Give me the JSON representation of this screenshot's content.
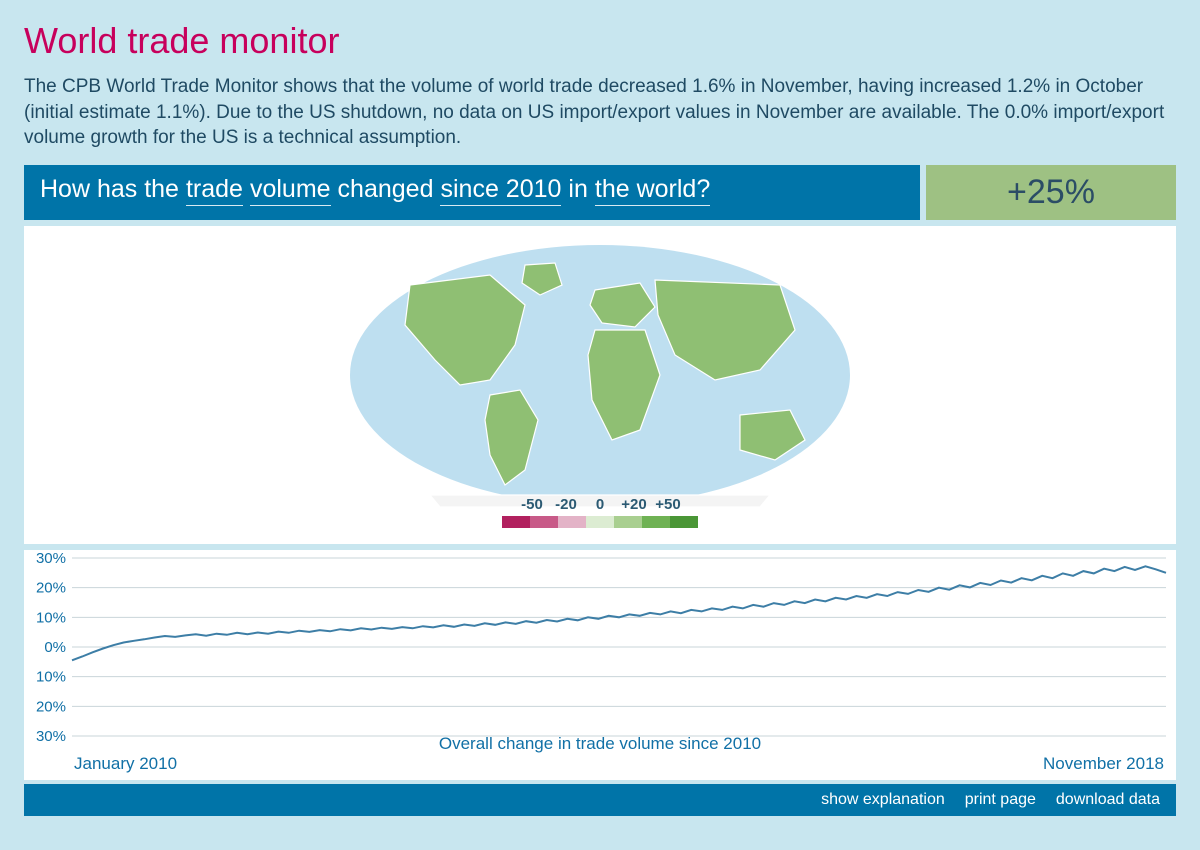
{
  "colors": {
    "page_bg": "#c8e6ef",
    "title": "#c7005c",
    "body_text": "#1f4a63",
    "question_bg": "#0074a8",
    "question_text": "#ffffff",
    "answer_bg": "#9ec183",
    "answer_text": "#2b4d66",
    "chart_line": "#3d7ea6",
    "chart_grid": "#c9d4da",
    "chart_label": "#1170a6",
    "map_bg": "#ffffff",
    "ocean": "#bedff0",
    "land_nodata": "#f4f4f4",
    "land_green": "#8fbf73"
  },
  "title": "World trade monitor",
  "intro": "The CPB World Trade Monitor shows that the volume of world trade decreased 1.6% in November, having increased 1.2% in October (initial estimate 1.1%). Due to the US shutdown, no data on US import/export values in November are available. The 0.0% import/export volume growth for the US is a technical assumption.",
  "question": {
    "parts": [
      {
        "type": "text",
        "value": "How has the"
      },
      {
        "type": "select",
        "value": "trade"
      },
      {
        "type": "select",
        "value": "volume"
      },
      {
        "type": "text",
        "value": "changed"
      },
      {
        "type": "select",
        "value": "since 2010"
      },
      {
        "type": "text",
        "value": "in"
      },
      {
        "type": "select",
        "value": "the world?"
      }
    ],
    "answer": "+25%"
  },
  "map_legend": {
    "ticks": [
      "-50",
      "-20",
      "0",
      "+20",
      "+50"
    ],
    "colors": [
      "#b2215f",
      "#c85a88",
      "#e3b3c7",
      "#dcecd2",
      "#a9cf90",
      "#6fb254",
      "#4a9636"
    ],
    "text_color": "#2b5a73"
  },
  "chart": {
    "type": "line",
    "caption": "Overall change in trade volume since 2010",
    "x_start_label": "January 2010",
    "x_end_label": "November 2018",
    "x_range": [
      0,
      106
    ],
    "ylim": [
      -30,
      30
    ],
    "y_ticks": [
      30,
      20,
      10,
      0,
      -10,
      -20,
      -30
    ],
    "y_tick_labels": [
      "30%",
      "20%",
      "10%",
      "0%",
      "10%",
      "20%",
      "30%"
    ],
    "grid_color": "#c9d4da",
    "line_color": "#3d7ea6",
    "line_width": 2,
    "label_color": "#1170a6",
    "label_fontsize": 17,
    "background_color": "#ffffff",
    "values": [
      -4.5,
      -3.2,
      -1.8,
      -0.5,
      0.6,
      1.5,
      2.1,
      2.6,
      3.2,
      3.7,
      3.4,
      3.9,
      4.3,
      3.8,
      4.5,
      4.1,
      4.8,
      4.3,
      4.9,
      4.5,
      5.2,
      4.8,
      5.5,
      5.1,
      5.7,
      5.3,
      6.0,
      5.6,
      6.3,
      5.9,
      6.5,
      6.1,
      6.7,
      6.3,
      7.0,
      6.6,
      7.3,
      6.8,
      7.6,
      7.1,
      8.0,
      7.5,
      8.3,
      7.8,
      8.7,
      8.2,
      9.1,
      8.6,
      9.5,
      9.0,
      10.0,
      9.5,
      10.5,
      10.0,
      11.0,
      10.5,
      11.5,
      11.0,
      12.0,
      11.4,
      12.5,
      12.0,
      13.0,
      12.5,
      13.6,
      13.0,
      14.2,
      13.6,
      14.8,
      14.2,
      15.4,
      14.8,
      16.0,
      15.4,
      16.6,
      16.0,
      17.2,
      16.6,
      17.8,
      17.2,
      18.5,
      17.9,
      19.2,
      18.6,
      20.0,
      19.3,
      20.8,
      20.1,
      21.6,
      20.9,
      22.4,
      21.7,
      23.2,
      22.5,
      24.0,
      23.2,
      24.8,
      24.0,
      25.6,
      24.8,
      26.4,
      25.6,
      27.0,
      26.0,
      27.2,
      26.2,
      25.0
    ]
  },
  "footer": {
    "links": [
      {
        "label": "show explanation"
      },
      {
        "label": "print page"
      },
      {
        "label": "download data"
      }
    ]
  }
}
